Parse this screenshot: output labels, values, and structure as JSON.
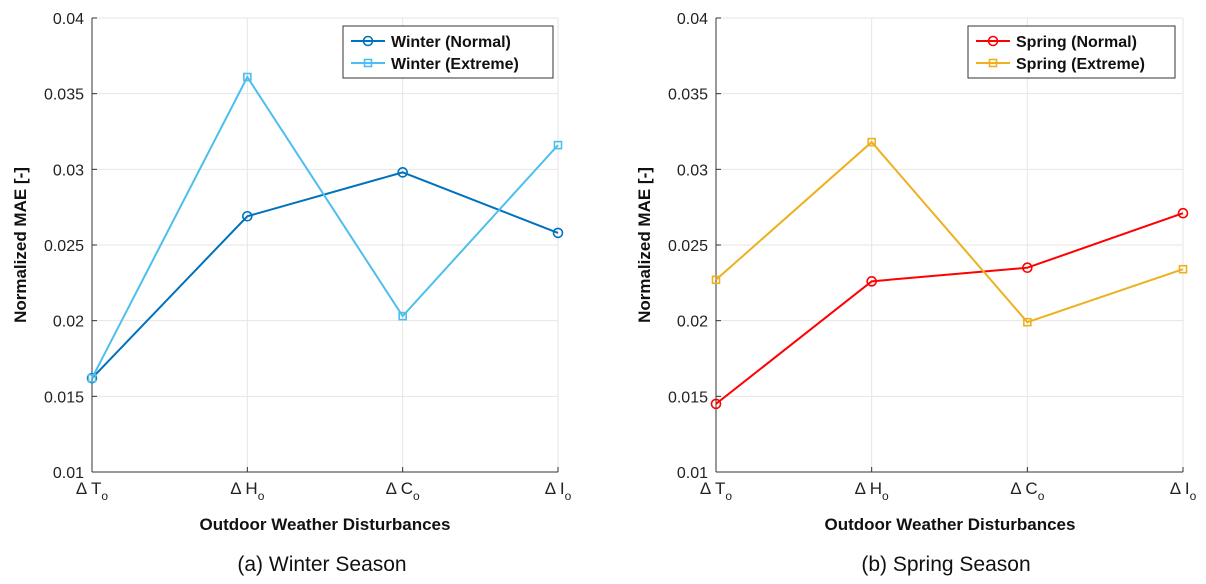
{
  "chart_data": [
    {
      "type": "line",
      "caption": "(a) Winter Season",
      "xlabel": "Outdoor Weather Disturbances",
      "ylabel": "Normalized MAE [-]",
      "ylim": [
        0.01,
        0.04
      ],
      "yticks": [
        "0.01",
        "0.015",
        "0.02",
        "0.025",
        "0.03",
        "0.035",
        "0.04"
      ],
      "categories": [
        {
          "symbol": "Δ",
          "main": "T",
          "sub": "o"
        },
        {
          "symbol": "Δ",
          "main": "H",
          "sub": "o"
        },
        {
          "symbol": "Δ",
          "main": "C",
          "sub": "o"
        },
        {
          "symbol": "Δ",
          "main": "I",
          "sub": "o"
        }
      ],
      "grid": true,
      "legend_position": "top-right",
      "series": [
        {
          "name": "Winter (Normal)",
          "color": "#0072BD",
          "marker": "circle",
          "values": [
            0.0162,
            0.0269,
            0.0298,
            0.0258
          ]
        },
        {
          "name": "Winter (Extreme)",
          "color": "#4DBEEE",
          "marker": "square",
          "values": [
            0.0162,
            0.0361,
            0.0203,
            0.0316
          ]
        }
      ]
    },
    {
      "type": "line",
      "caption": "(b) Spring Season",
      "xlabel": "Outdoor Weather Disturbances",
      "ylabel": "Normalized MAE [-]",
      "ylim": [
        0.01,
        0.04
      ],
      "yticks": [
        "0.01",
        "0.015",
        "0.02",
        "0.025",
        "0.03",
        "0.035",
        "0.04"
      ],
      "categories": [
        {
          "symbol": "Δ",
          "main": "T",
          "sub": "o"
        },
        {
          "symbol": "Δ",
          "main": "H",
          "sub": "o"
        },
        {
          "symbol": "Δ",
          "main": "C",
          "sub": "o"
        },
        {
          "symbol": "Δ",
          "main": "I",
          "sub": "o"
        }
      ],
      "grid": true,
      "legend_position": "top-right",
      "series": [
        {
          "name": "Spring (Normal)",
          "color": "#FF0000",
          "marker": "circle",
          "values": [
            0.0145,
            0.0226,
            0.0235,
            0.0271
          ]
        },
        {
          "name": "Spring (Extreme)",
          "color": "#EDB120",
          "marker": "square",
          "values": [
            0.0227,
            0.0318,
            0.0199,
            0.0234
          ]
        }
      ]
    }
  ]
}
